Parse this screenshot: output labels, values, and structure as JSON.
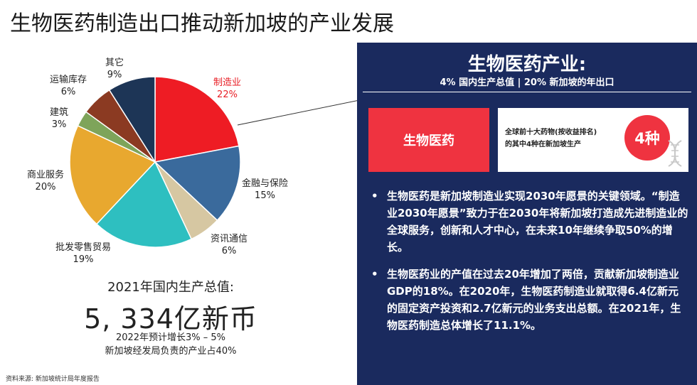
{
  "title": "生物医药制造出口推动新加坡的产业发展",
  "chart_data": {
    "type": "pie",
    "slices": [
      {
        "label": "制造业",
        "value": 22,
        "percent_label": "22%",
        "color": "#ee1c24",
        "highlight": true
      },
      {
        "label": "金融与保险",
        "value": 15,
        "percent_label": "15%",
        "color": "#3a6a9c"
      },
      {
        "label": "资讯通信",
        "value": 6,
        "percent_label": "6%",
        "color": "#d6c7a2"
      },
      {
        "label": "批发零售贸易",
        "value": 19,
        "percent_label": "19%",
        "color": "#2ebfc0"
      },
      {
        "label": "商业服务",
        "value": 20,
        "percent_label": "20%",
        "color": "#e8a82f"
      },
      {
        "label": "建筑",
        "value": 3,
        "percent_label": "3%",
        "color": "#7ea45a"
      },
      {
        "label": "运输库存",
        "value": 6,
        "percent_label": "6%",
        "color": "#8b3a22"
      },
      {
        "label": "其它",
        "value": 9,
        "percent_label": "9%",
        "color": "#1d3556"
      }
    ]
  },
  "gdp": {
    "heading": "2021年国内生产总值:",
    "value": "5, 334亿新币",
    "note1": "2022年预计增长3% – 5%",
    "note2": "新加坡经发局负责的产业占40%"
  },
  "source": "资料来源: 新加坡统计局年度报告",
  "panel": {
    "title": "生物医药产业:",
    "subtitle": "4%  国内生产总值    |    20%  新加坡的年出口",
    "red_box": "生物医药",
    "white_box_line1": "全球前十大药物(按收益排名)",
    "white_box_line2": "的其中4种在新加坡生产",
    "badge": "4种",
    "bullet_mark": "•",
    "bullets": [
      "生物医药是新加坡制造业实现2030年愿景的关键领域。“制造业2030年愿景”致力于在2030年将新加坡打造成先进制造业的全球服务，创新和人才中心，在未来10年继续争取50%的增长。",
      "生物医药业的产值在过去20年增加了两倍，贡献新加坡制造业GDP的18%。在2020年，生物医药制造业就取得6.4亿新元的固定资产投资和2.7亿新元的业务支出总额。在2021年，生物医药制造总体增长了11.1%。"
    ],
    "dna_icon": "dna-icon",
    "colors": {
      "panel_bg": "#1a2a5e",
      "accent": "#ef3340"
    }
  }
}
